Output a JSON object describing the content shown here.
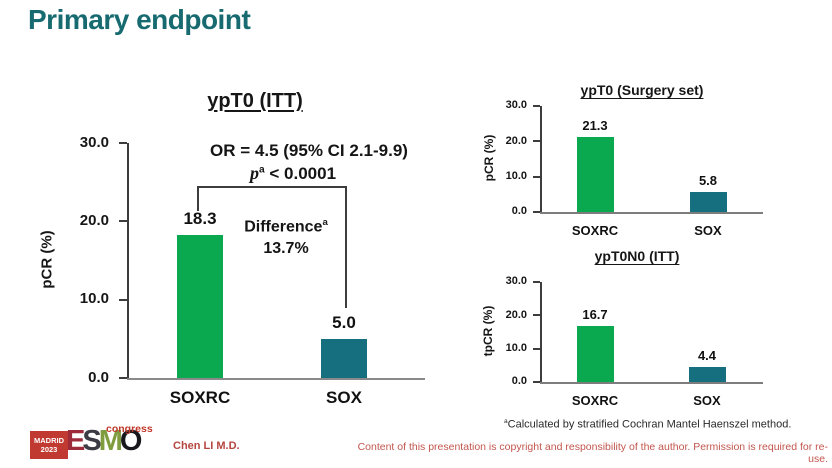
{
  "slide": {
    "title": "Primary endpoint",
    "presenter": "Chen LI M.D.",
    "copyright_notice": "Content of this presentation is copyright and responsibility of the author. Permission is required for re-use.",
    "footnote_sup": "a",
    "footnote_text": "Calculated by stratified Cochran Mantel Haenszel method.",
    "logo": {
      "city": "MADRID",
      "year": "2023",
      "letters": [
        "E",
        "S",
        "M",
        "O"
      ],
      "event": "congress"
    }
  },
  "colors": {
    "title_teal": "#176b70",
    "bar_green": "#0AA94F",
    "bar_teal": "#156F7E",
    "footer_red": "#b5453f"
  },
  "chart_data": [
    {
      "type": "bar",
      "title": "ypT0 (ITT)",
      "ylabel": "pCR (%)",
      "categories": [
        "SOXRC",
        "SOX"
      ],
      "values": [
        18.3,
        5.0
      ],
      "value_labels": [
        "18.3",
        "5.0"
      ],
      "bar_colors": [
        "#0AA94F",
        "#156F7E"
      ],
      "ylim": [
        0,
        30
      ],
      "yticks": [
        "30.0",
        "20.0",
        "10.0",
        "0.0"
      ],
      "grid": false,
      "annotations": {
        "or_text": "OR = 4.5 (95% CI 2.1-9.9)",
        "p_italic": "p",
        "p_sup": "a",
        "p_rest": "< 0.0001",
        "diff_label": "Difference",
        "diff_sup": "a",
        "diff_value": "13.7%"
      }
    },
    {
      "type": "bar",
      "title": "ypT0 (Surgery set)",
      "ylabel": "pCR (%)",
      "categories": [
        "SOXRC",
        "SOX"
      ],
      "values": [
        21.3,
        5.8
      ],
      "value_labels": [
        "21.3",
        "5.8"
      ],
      "bar_colors": [
        "#0AA94F",
        "#156F7E"
      ],
      "ylim": [
        0,
        30
      ],
      "yticks": [
        "30.0",
        "20.0",
        "10.0",
        "0.0"
      ],
      "grid": false
    },
    {
      "type": "bar",
      "title": "ypT0N0 (ITT)",
      "ylabel": "tpCR (%)",
      "categories": [
        "SOXRC",
        "SOX"
      ],
      "values": [
        16.7,
        4.4
      ],
      "value_labels": [
        "16.7",
        "4.4"
      ],
      "bar_colors": [
        "#0AA94F",
        "#156F7E"
      ],
      "ylim": [
        0,
        30
      ],
      "yticks": [
        "30.0",
        "20.0",
        "10.0",
        "0.0"
      ],
      "grid": false
    }
  ]
}
